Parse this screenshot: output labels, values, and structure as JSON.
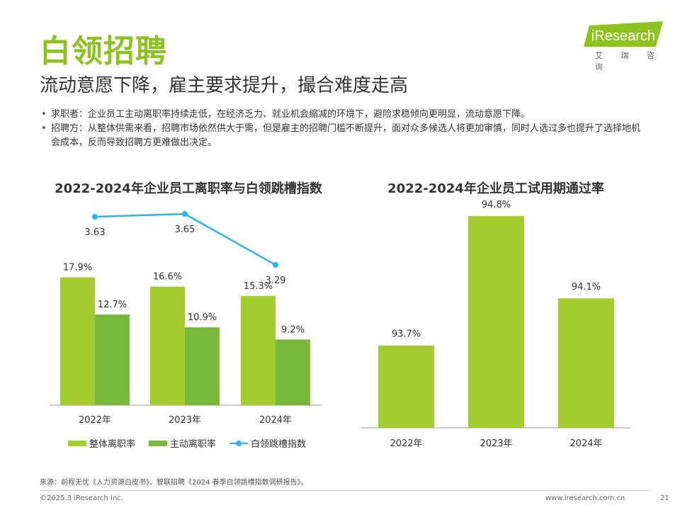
{
  "page": {
    "title": "白领招聘",
    "subtitle": "流动意愿下降，雇主要求提升，撮合难度走高",
    "logo": {
      "brand": "iResearch",
      "tagline": "艾 瑞 咨 询"
    },
    "bullets": [
      "求职者：企业员工主动离职率持续走低，在经济乏力、就业机会缩减的环境下，避险求稳倾向更明显，流动意愿下降。",
      "招聘方：从整体供需来看，招聘市场依然供大于需，但是雇主的招聘门槛不断提升，面对众多候选人将更加审慎，同时人选过多也提升了选择地机会成本，反而导致招聘方更难做出决定。"
    ],
    "source": "来源：前程无忧《人力资源白皮书》、智联招聘《2024 春季白领跳槽指数调研报告》。",
    "copyright": "©2025.3 iResearch Inc.",
    "website": "www.iresearch.com.cn",
    "page_number": "21",
    "colors": {
      "accent": "#8dc21f",
      "bar_total": "#a4cc2e",
      "bar_active": "#78b93c",
      "line": "#29b6e8",
      "axis": "#999999"
    }
  },
  "chart_data": [
    {
      "type": "bar",
      "title": "2022-2024年企业员工离职率与白领跳槽指数",
      "categories": [
        "2022年",
        "2023年",
        "2024年"
      ],
      "series": [
        {
          "name": "整体离职率",
          "type": "bar",
          "values": [
            17.9,
            16.6,
            15.3
          ],
          "labels": [
            "17.9%",
            "16.6%",
            "15.3%"
          ]
        },
        {
          "name": "主动离职率",
          "type": "bar",
          "values": [
            12.7,
            10.9,
            9.2
          ],
          "labels": [
            "12.7%",
            "10.9%",
            "9.2%"
          ]
        },
        {
          "name": "白领跳槽指数",
          "type": "line",
          "values": [
            3.63,
            3.65,
            3.29
          ],
          "labels": [
            "3.63",
            "3.65",
            "3.29"
          ]
        }
      ],
      "bar_ylim": [
        0,
        25
      ],
      "line_ylim": [
        2.3,
        3.8
      ],
      "legend": "bottom"
    },
    {
      "type": "bar",
      "title": "2022-2024年企业员工试用期通过率",
      "categories": [
        "2022年",
        "2023年",
        "2024年"
      ],
      "series": [
        {
          "name": "",
          "values": [
            93.7,
            94.8,
            94.1
          ],
          "labels": [
            "93.7%",
            "94.8%",
            "94.1%"
          ]
        }
      ],
      "ylim": [
        93.0,
        94.95
      ]
    }
  ]
}
